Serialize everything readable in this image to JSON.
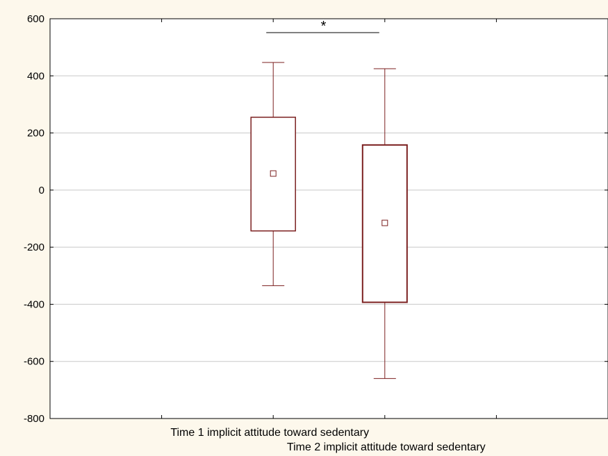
{
  "chart_data": {
    "type": "boxplot",
    "title": "",
    "xlabel": "",
    "ylabel": "",
    "ylim": [
      -800,
      600
    ],
    "yticks": [
      -800,
      -600,
      -400,
      -200,
      0,
      200,
      400,
      600
    ],
    "grid": true,
    "categories": [
      "Time 1 implicit attitude toward sedentary",
      "Time 2 implicit attitude toward sedentary"
    ],
    "boxes": [
      {
        "whisker_low": -335,
        "q1": -143,
        "center": 58,
        "q3": 255,
        "whisker_high": 447
      },
      {
        "whisker_low": -660,
        "q1": -393,
        "center": -115,
        "q3": 158,
        "whisker_high": 425
      }
    ],
    "significance": {
      "label": "*",
      "between": [
        0,
        1
      ]
    },
    "colors": {
      "box": "#7b1f1f",
      "grid": "#c8c8c8",
      "plot_bg": "#ffffff",
      "page_bg": "#fdf8ec"
    }
  }
}
